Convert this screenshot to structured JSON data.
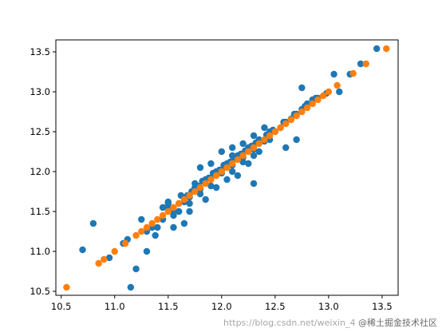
{
  "chart_data": {
    "type": "scatter",
    "title": "",
    "xlabel": "",
    "ylabel": "",
    "xlim": [
      10.45,
      13.65
    ],
    "ylim": [
      10.45,
      13.65
    ],
    "xticks": [
      "10.5",
      "11.0",
      "11.5",
      "12.0",
      "12.5",
      "13.0",
      "13.5"
    ],
    "yticks": [
      "10.5",
      "11.0",
      "11.5",
      "12.0",
      "12.5",
      "13.0",
      "13.5"
    ],
    "grid": false,
    "legend": "none",
    "series": [
      {
        "color": "#1f77b4",
        "x": [
          10.7,
          10.8,
          10.95,
          11.15,
          11.2,
          11.08,
          11.12,
          11.25,
          11.35,
          11.45,
          11.3,
          11.38,
          11.5,
          11.55,
          11.62,
          11.7,
          11.55,
          11.65,
          11.75,
          11.8,
          11.85,
          11.9,
          11.95,
          12.0,
          12.05,
          12.1,
          12.15,
          12.2,
          12.25,
          12.3,
          12.35,
          12.4,
          11.6,
          11.7,
          11.8,
          11.9,
          12.0,
          12.1,
          12.2,
          12.3,
          12.4,
          12.5,
          12.55,
          12.6,
          12.65,
          12.7,
          12.75,
          12.8,
          12.85,
          12.9,
          11.5,
          11.6,
          11.7,
          11.8,
          11.9,
          12.0,
          12.1,
          12.2,
          12.3,
          11.75,
          11.85,
          11.95,
          12.05,
          12.15,
          12.25,
          12.35,
          12.45,
          11.68,
          11.78,
          11.88,
          11.98,
          12.08,
          12.18,
          12.28,
          12.48,
          12.58,
          12.68,
          12.78,
          12.88,
          12.98,
          12.5,
          12.45,
          11.45,
          11.55,
          11.4,
          11.3,
          11.6,
          11.5,
          12.1,
          12.6,
          12.3,
          12.7,
          13.05,
          13.1,
          13.2,
          13.3,
          13.45,
          12.75,
          11.65,
          11.72,
          11.82,
          11.92,
          12.02,
          12.12,
          12.22,
          12.32,
          12.42
        ],
        "y": [
          11.02,
          11.35,
          10.92,
          10.55,
          10.78,
          11.1,
          11.15,
          11.4,
          11.3,
          11.55,
          11.0,
          11.2,
          11.62,
          11.45,
          11.7,
          11.5,
          11.3,
          11.35,
          11.85,
          12.05,
          11.65,
          12.1,
          11.8,
          12.25,
          11.9,
          12.3,
          11.95,
          12.35,
          12.1,
          12.45,
          12.25,
          12.55,
          11.6,
          11.68,
          11.78,
          11.92,
          12.02,
          12.08,
          12.18,
          12.28,
          12.38,
          12.5,
          12.55,
          12.62,
          12.66,
          12.72,
          12.78,
          12.85,
          12.9,
          12.92,
          11.6,
          11.5,
          11.6,
          11.72,
          11.82,
          11.98,
          12.0,
          12.12,
          12.2,
          11.8,
          11.9,
          12.0,
          12.1,
          12.2,
          12.3,
          12.4,
          12.5,
          11.7,
          11.82,
          11.92,
          12.02,
          12.12,
          12.22,
          12.32,
          12.52,
          12.62,
          12.72,
          12.82,
          12.92,
          12.98,
          12.5,
          12.4,
          11.4,
          11.5,
          11.3,
          11.25,
          11.5,
          11.55,
          12.2,
          12.3,
          11.85,
          12.4,
          13.22,
          13.0,
          13.22,
          13.35,
          13.54,
          13.05,
          11.62,
          11.75,
          11.88,
          11.98,
          12.08,
          12.16,
          12.26,
          12.36,
          12.46
        ]
      },
      {
        "color": "#ff7f0e",
        "x": [
          10.55,
          10.85,
          10.9,
          11.0,
          11.1,
          11.2,
          11.3,
          11.4,
          11.5,
          11.6,
          11.7,
          11.8,
          11.9,
          12.0,
          12.1,
          12.2,
          12.3,
          12.4,
          12.5,
          12.6,
          12.7,
          12.8,
          12.9,
          13.0,
          13.08,
          13.23,
          13.35,
          13.54,
          11.25,
          11.35,
          11.45,
          11.55,
          11.65,
          11.75,
          11.85,
          11.95,
          12.05,
          12.15,
          12.25,
          12.35,
          12.45,
          12.55,
          12.65,
          12.75,
          12.85,
          12.95
        ],
        "y": [
          10.55,
          10.85,
          10.9,
          11.0,
          11.1,
          11.2,
          11.3,
          11.4,
          11.5,
          11.6,
          11.7,
          11.8,
          11.9,
          12.0,
          12.1,
          12.2,
          12.3,
          12.4,
          12.5,
          12.6,
          12.7,
          12.8,
          12.9,
          13.0,
          13.08,
          13.23,
          13.35,
          13.54,
          11.25,
          11.35,
          11.45,
          11.55,
          11.65,
          11.75,
          11.85,
          11.95,
          12.05,
          12.15,
          12.25,
          12.35,
          12.45,
          12.55,
          12.65,
          12.75,
          12.85,
          12.95
        ]
      }
    ]
  },
  "watermark": {
    "part1": "https://blog.csdn.net/weixin_4",
    "part2": "@稀土掘金技术社区"
  }
}
